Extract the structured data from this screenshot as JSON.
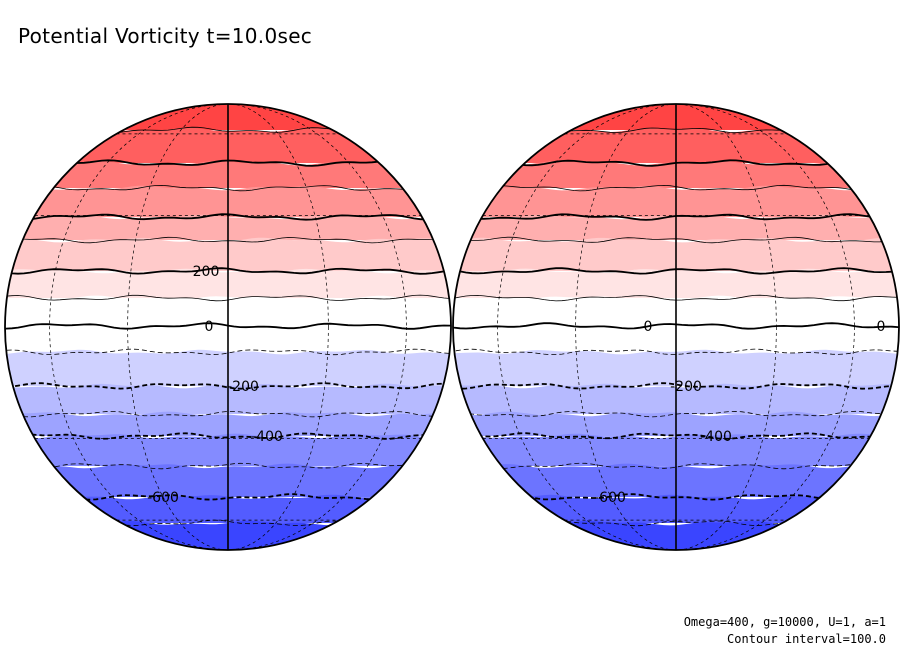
{
  "title": "Potential Vorticity t=10.0sec",
  "footer": {
    "params": "Omega=400, g=10000, U=1, a=1",
    "interval": "Contour interval=100.0"
  },
  "colors": {
    "positive": "#ff3a3a",
    "zero": "#ffffff",
    "negative": "#3a45ff"
  },
  "globes": [
    {
      "name": "left",
      "labels": [
        {
          "text": "200",
          "level": 200
        },
        {
          "text": "0",
          "level": 0
        },
        {
          "text": "-200",
          "level": -200
        },
        {
          "text": "-400",
          "level": -400
        },
        {
          "text": "-600",
          "level": -600
        }
      ]
    },
    {
      "name": "right",
      "labels": [
        {
          "text": "0",
          "level": 0
        },
        {
          "text": "0",
          "level": 0
        },
        {
          "text": "-200",
          "level": -200
        },
        {
          "text": "-400",
          "level": -400
        },
        {
          "text": "-600",
          "level": -600
        }
      ]
    }
  ]
}
